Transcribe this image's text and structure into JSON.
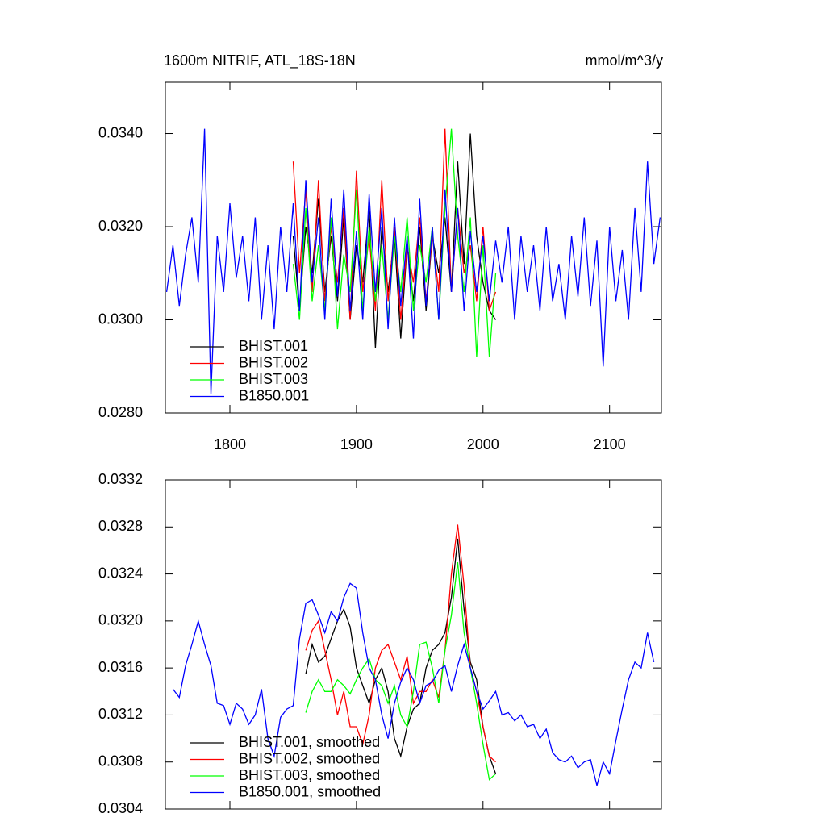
{
  "chart_data": [
    {
      "type": "line",
      "title": "1600m NITRIF, ATL_18S-18N",
      "units_label": "mmol/m^3/y",
      "xlim": [
        1749,
        2141
      ],
      "xticks": [
        1800,
        1900,
        2000,
        2100
      ],
      "xtick_labels": true,
      "ylim": [
        0.028,
        0.0351
      ],
      "yticks": [
        {
          "value": 0.028,
          "label": "0.0280"
        },
        {
          "value": 0.03,
          "label": "0.0300"
        },
        {
          "value": 0.032,
          "label": "0.0320"
        },
        {
          "value": 0.034,
          "label": "0.0340"
        }
      ],
      "legend": "lower left",
      "series": [
        {
          "name": "BHIST.001",
          "color": "#000000",
          "x": [
            1850,
            1855,
            1860,
            1865,
            1870,
            1875,
            1880,
            1885,
            1890,
            1895,
            1900,
            1905,
            1910,
            1915,
            1920,
            1925,
            1930,
            1935,
            1940,
            1945,
            1950,
            1955,
            1960,
            1965,
            1970,
            1975,
            1980,
            1985,
            1990,
            1995,
            2000,
            2005,
            2010
          ],
          "values": [
            0.0318,
            0.0302,
            0.032,
            0.031,
            0.0326,
            0.0306,
            0.0318,
            0.0304,
            0.0322,
            0.03,
            0.0316,
            0.0308,
            0.0324,
            0.0294,
            0.032,
            0.0306,
            0.0318,
            0.0296,
            0.0316,
            0.0304,
            0.032,
            0.0302,
            0.0318,
            0.031,
            0.0322,
            0.0306,
            0.0334,
            0.0312,
            0.034,
            0.0318,
            0.0308,
            0.0302,
            0.03
          ]
        },
        {
          "name": "BHIST.002",
          "color": "#ff0000",
          "x": [
            1850,
            1855,
            1860,
            1865,
            1870,
            1875,
            1880,
            1885,
            1890,
            1895,
            1900,
            1905,
            1910,
            1915,
            1920,
            1925,
            1930,
            1935,
            1940,
            1945,
            1950,
            1955,
            1960,
            1965,
            1970,
            1975,
            1980,
            1985,
            1990,
            1995,
            2000,
            2005,
            2010
          ],
          "values": [
            0.0334,
            0.031,
            0.0328,
            0.0306,
            0.033,
            0.0304,
            0.032,
            0.0308,
            0.0324,
            0.03,
            0.0332,
            0.0306,
            0.0318,
            0.0302,
            0.033,
            0.0304,
            0.032,
            0.03,
            0.0316,
            0.0308,
            0.0322,
            0.0304,
            0.0318,
            0.0306,
            0.0341,
            0.0306,
            0.0324,
            0.031,
            0.0316,
            0.0304,
            0.032,
            0.0302,
            0.0306
          ]
        },
        {
          "name": "BHIST.003",
          "color": "#00ff00",
          "x": [
            1850,
            1855,
            1860,
            1865,
            1870,
            1875,
            1880,
            1885,
            1890,
            1895,
            1900,
            1905,
            1910,
            1915,
            1920,
            1925,
            1930,
            1935,
            1940,
            1945,
            1950,
            1955,
            1960,
            1965,
            1970,
            1975,
            1980,
            1985,
            1990,
            1995,
            2000,
            2005,
            2010
          ],
          "values": [
            0.0312,
            0.03,
            0.0324,
            0.0304,
            0.0316,
            0.0302,
            0.0322,
            0.0298,
            0.0314,
            0.0306,
            0.0328,
            0.0302,
            0.032,
            0.0304,
            0.0316,
            0.03,
            0.0318,
            0.0306,
            0.0322,
            0.0302,
            0.0316,
            0.0308,
            0.032,
            0.03,
            0.0324,
            0.0341,
            0.0318,
            0.0306,
            0.0322,
            0.0292,
            0.0316,
            0.0292,
            0.031
          ]
        },
        {
          "name": "B1850.001",
          "color": "#0000ff",
          "x": [
            1750,
            1755,
            1760,
            1765,
            1770,
            1775,
            1780,
            1785,
            1790,
            1795,
            1800,
            1805,
            1810,
            1815,
            1820,
            1825,
            1830,
            1835,
            1840,
            1845,
            1850,
            1855,
            1860,
            1865,
            1870,
            1875,
            1880,
            1885,
            1890,
            1895,
            1900,
            1905,
            1910,
            1915,
            1920,
            1925,
            1930,
            1935,
            1940,
            1945,
            1950,
            1955,
            1960,
            1965,
            1970,
            1975,
            1980,
            1985,
            1990,
            1995,
            2000,
            2005,
            2010,
            2015,
            2020,
            2025,
            2030,
            2035,
            2040,
            2045,
            2050,
            2055,
            2060,
            2065,
            2070,
            2075,
            2080,
            2085,
            2090,
            2095,
            2100,
            2105,
            2110,
            2115,
            2120,
            2125,
            2130,
            2135,
            2140
          ],
          "values": [
            0.0306,
            0.0316,
            0.0303,
            0.0314,
            0.0322,
            0.0308,
            0.0341,
            0.0284,
            0.0318,
            0.0306,
            0.0325,
            0.0309,
            0.0318,
            0.0304,
            0.0322,
            0.03,
            0.0316,
            0.0298,
            0.032,
            0.0306,
            0.0325,
            0.0302,
            0.033,
            0.0308,
            0.0322,
            0.03,
            0.0326,
            0.0305,
            0.0328,
            0.0302,
            0.0319,
            0.03,
            0.0327,
            0.0306,
            0.0324,
            0.0298,
            0.0322,
            0.0303,
            0.0318,
            0.0296,
            0.0326,
            0.0303,
            0.032,
            0.03,
            0.0328,
            0.0306,
            0.0324,
            0.0302,
            0.0319,
            0.0306,
            0.0318,
            0.0304,
            0.0317,
            0.0308,
            0.032,
            0.03,
            0.0318,
            0.0306,
            0.0316,
            0.0302,
            0.032,
            0.0304,
            0.0312,
            0.03,
            0.0318,
            0.0305,
            0.0322,
            0.0303,
            0.0317,
            0.029,
            0.032,
            0.0304,
            0.0315,
            0.03,
            0.0324,
            0.0306,
            0.0334,
            0.0312,
            0.0322
          ]
        }
      ]
    },
    {
      "type": "line",
      "xlim": [
        1749,
        2141
      ],
      "xticks": [
        1800,
        1900,
        2000,
        2100
      ],
      "xtick_labels": false,
      "ylim": [
        0.0304,
        0.0332
      ],
      "yticks": [
        {
          "value": 0.0304,
          "label": "0.0304"
        },
        {
          "value": 0.0308,
          "label": "0.0308"
        },
        {
          "value": 0.0312,
          "label": "0.0312"
        },
        {
          "value": 0.0316,
          "label": "0.0316"
        },
        {
          "value": 0.032,
          "label": "0.0320"
        },
        {
          "value": 0.0324,
          "label": "0.0324"
        },
        {
          "value": 0.0328,
          "label": "0.0328"
        },
        {
          "value": 0.0332,
          "label": "0.0332"
        }
      ],
      "legend": "lower left",
      "series": [
        {
          "name": "BHIST.001, smoothed",
          "color": "#000000",
          "x": [
            1860,
            1865,
            1870,
            1875,
            1880,
            1885,
            1890,
            1895,
            1900,
            1905,
            1910,
            1915,
            1920,
            1925,
            1930,
            1935,
            1940,
            1945,
            1950,
            1955,
            1960,
            1965,
            1970,
            1975,
            1980,
            1985,
            1990,
            1995,
            2000,
            2005,
            2010
          ],
          "values": [
            0.03155,
            0.0318,
            0.03165,
            0.0317,
            0.03185,
            0.032,
            0.0321,
            0.03195,
            0.0316,
            0.03145,
            0.0313,
            0.0315,
            0.0316,
            0.0314,
            0.031,
            0.03085,
            0.0311,
            0.03125,
            0.0313,
            0.0316,
            0.03175,
            0.0318,
            0.0319,
            0.0322,
            0.0327,
            0.0321,
            0.03165,
            0.0315,
            0.0311,
            0.03085,
            0.0307
          ]
        },
        {
          "name": "BHIST.002, smoothed",
          "color": "#ff0000",
          "x": [
            1860,
            1865,
            1870,
            1875,
            1880,
            1885,
            1890,
            1895,
            1900,
            1905,
            1910,
            1915,
            1920,
            1925,
            1930,
            1935,
            1940,
            1945,
            1950,
            1955,
            1960,
            1965,
            1970,
            1975,
            1980,
            1985,
            1990,
            1995,
            2000,
            2005,
            2010
          ],
          "values": [
            0.03175,
            0.03192,
            0.032,
            0.03175,
            0.0315,
            0.0312,
            0.0314,
            0.0311,
            0.0311,
            0.03095,
            0.0312,
            0.0316,
            0.03175,
            0.0318,
            0.03165,
            0.0315,
            0.0317,
            0.0313,
            0.0314,
            0.0314,
            0.0315,
            0.03135,
            0.03175,
            0.0324,
            0.03282,
            0.0323,
            0.0316,
            0.0314,
            0.0311,
            0.03085,
            0.0308
          ]
        },
        {
          "name": "BHIST.003, smoothed",
          "color": "#00ff00",
          "x": [
            1860,
            1865,
            1870,
            1875,
            1880,
            1885,
            1890,
            1895,
            1900,
            1905,
            1910,
            1915,
            1920,
            1925,
            1930,
            1935,
            1940,
            1945,
            1950,
            1955,
            1960,
            1965,
            1970,
            1975,
            1980,
            1985,
            1990,
            1995,
            2000,
            2005,
            2010
          ],
          "values": [
            0.03122,
            0.0314,
            0.0315,
            0.0314,
            0.0314,
            0.0315,
            0.03145,
            0.03138,
            0.0315,
            0.0316,
            0.03168,
            0.0315,
            0.03145,
            0.0313,
            0.03145,
            0.0312,
            0.0311,
            0.0314,
            0.0318,
            0.03182,
            0.0316,
            0.0313,
            0.03175,
            0.03205,
            0.0325,
            0.0319,
            0.0316,
            0.0313,
            0.03095,
            0.03065,
            0.0307
          ]
        },
        {
          "name": "B1850.001, smoothed",
          "color": "#0000ff",
          "x": [
            1755,
            1760,
            1765,
            1770,
            1775,
            1780,
            1785,
            1790,
            1795,
            1800,
            1805,
            1810,
            1815,
            1820,
            1825,
            1830,
            1835,
            1840,
            1845,
            1850,
            1855,
            1860,
            1865,
            1870,
            1875,
            1880,
            1885,
            1890,
            1895,
            1900,
            1905,
            1910,
            1915,
            1920,
            1925,
            1930,
            1935,
            1940,
            1945,
            1950,
            1955,
            1960,
            1965,
            1970,
            1975,
            1980,
            1985,
            1990,
            1995,
            2000,
            2005,
            2010,
            2015,
            2020,
            2025,
            2030,
            2035,
            2040,
            2045,
            2050,
            2055,
            2060,
            2065,
            2070,
            2075,
            2080,
            2085,
            2090,
            2095,
            2100,
            2105,
            2110,
            2115,
            2120,
            2125,
            2130,
            2135
          ],
          "values": [
            0.03142,
            0.03135,
            0.03162,
            0.0318,
            0.032,
            0.0318,
            0.03162,
            0.0313,
            0.03128,
            0.03112,
            0.0313,
            0.03125,
            0.03112,
            0.0312,
            0.03142,
            0.031,
            0.03085,
            0.03118,
            0.03125,
            0.03128,
            0.03185,
            0.03215,
            0.03218,
            0.03205,
            0.0319,
            0.03208,
            0.032,
            0.0322,
            0.03232,
            0.03228,
            0.0319,
            0.0316,
            0.0315,
            0.0312,
            0.031,
            0.0313,
            0.03148,
            0.0316,
            0.0315,
            0.0313,
            0.03145,
            0.03148,
            0.03158,
            0.03162,
            0.0314,
            0.03162,
            0.0318,
            0.0316,
            0.0314,
            0.03125,
            0.03132,
            0.0314,
            0.0312,
            0.03122,
            0.03115,
            0.0312,
            0.0311,
            0.03112,
            0.031,
            0.03108,
            0.03088,
            0.03082,
            0.0308,
            0.03085,
            0.03075,
            0.0308,
            0.03082,
            0.0306,
            0.0308,
            0.0307,
            0.03098,
            0.03125,
            0.0315,
            0.03165,
            0.0316,
            0.0319,
            0.03165
          ]
        }
      ]
    }
  ]
}
